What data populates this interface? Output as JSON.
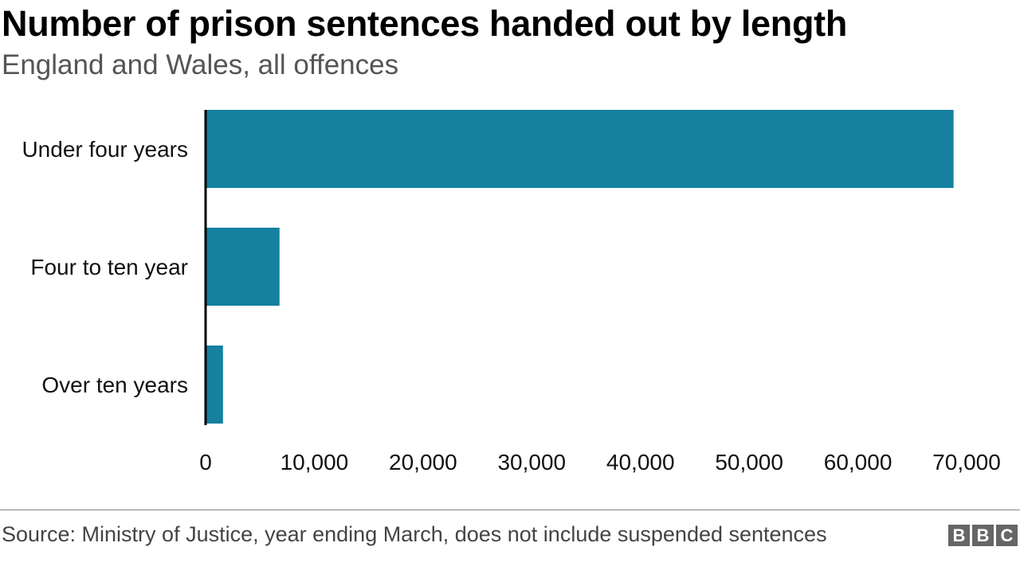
{
  "header": {
    "title": "Number of prison sentences handed out by length",
    "subtitle": "England and Wales, all offences"
  },
  "footer": {
    "source": "Source: Ministry of Justice, year ending March, does not include suspended sentences",
    "logo": "BBC"
  },
  "colors": {
    "bar": "#1580A0",
    "axis": "#000000",
    "text": "#222222"
  },
  "chart_data": {
    "type": "bar",
    "orientation": "horizontal",
    "categories": [
      "Under four years",
      "Four to ten year",
      "Over ten years"
    ],
    "values": [
      68800,
      6800,
      1600
    ],
    "xlim": [
      0,
      70000
    ],
    "xticks": [
      0,
      10000,
      20000,
      30000,
      40000,
      50000,
      60000,
      70000
    ],
    "xtick_labels": [
      "0",
      "10,000",
      "20,000",
      "30,000",
      "40,000",
      "50,000",
      "60,000",
      "70,000"
    ],
    "grid": false,
    "legend": "none"
  }
}
